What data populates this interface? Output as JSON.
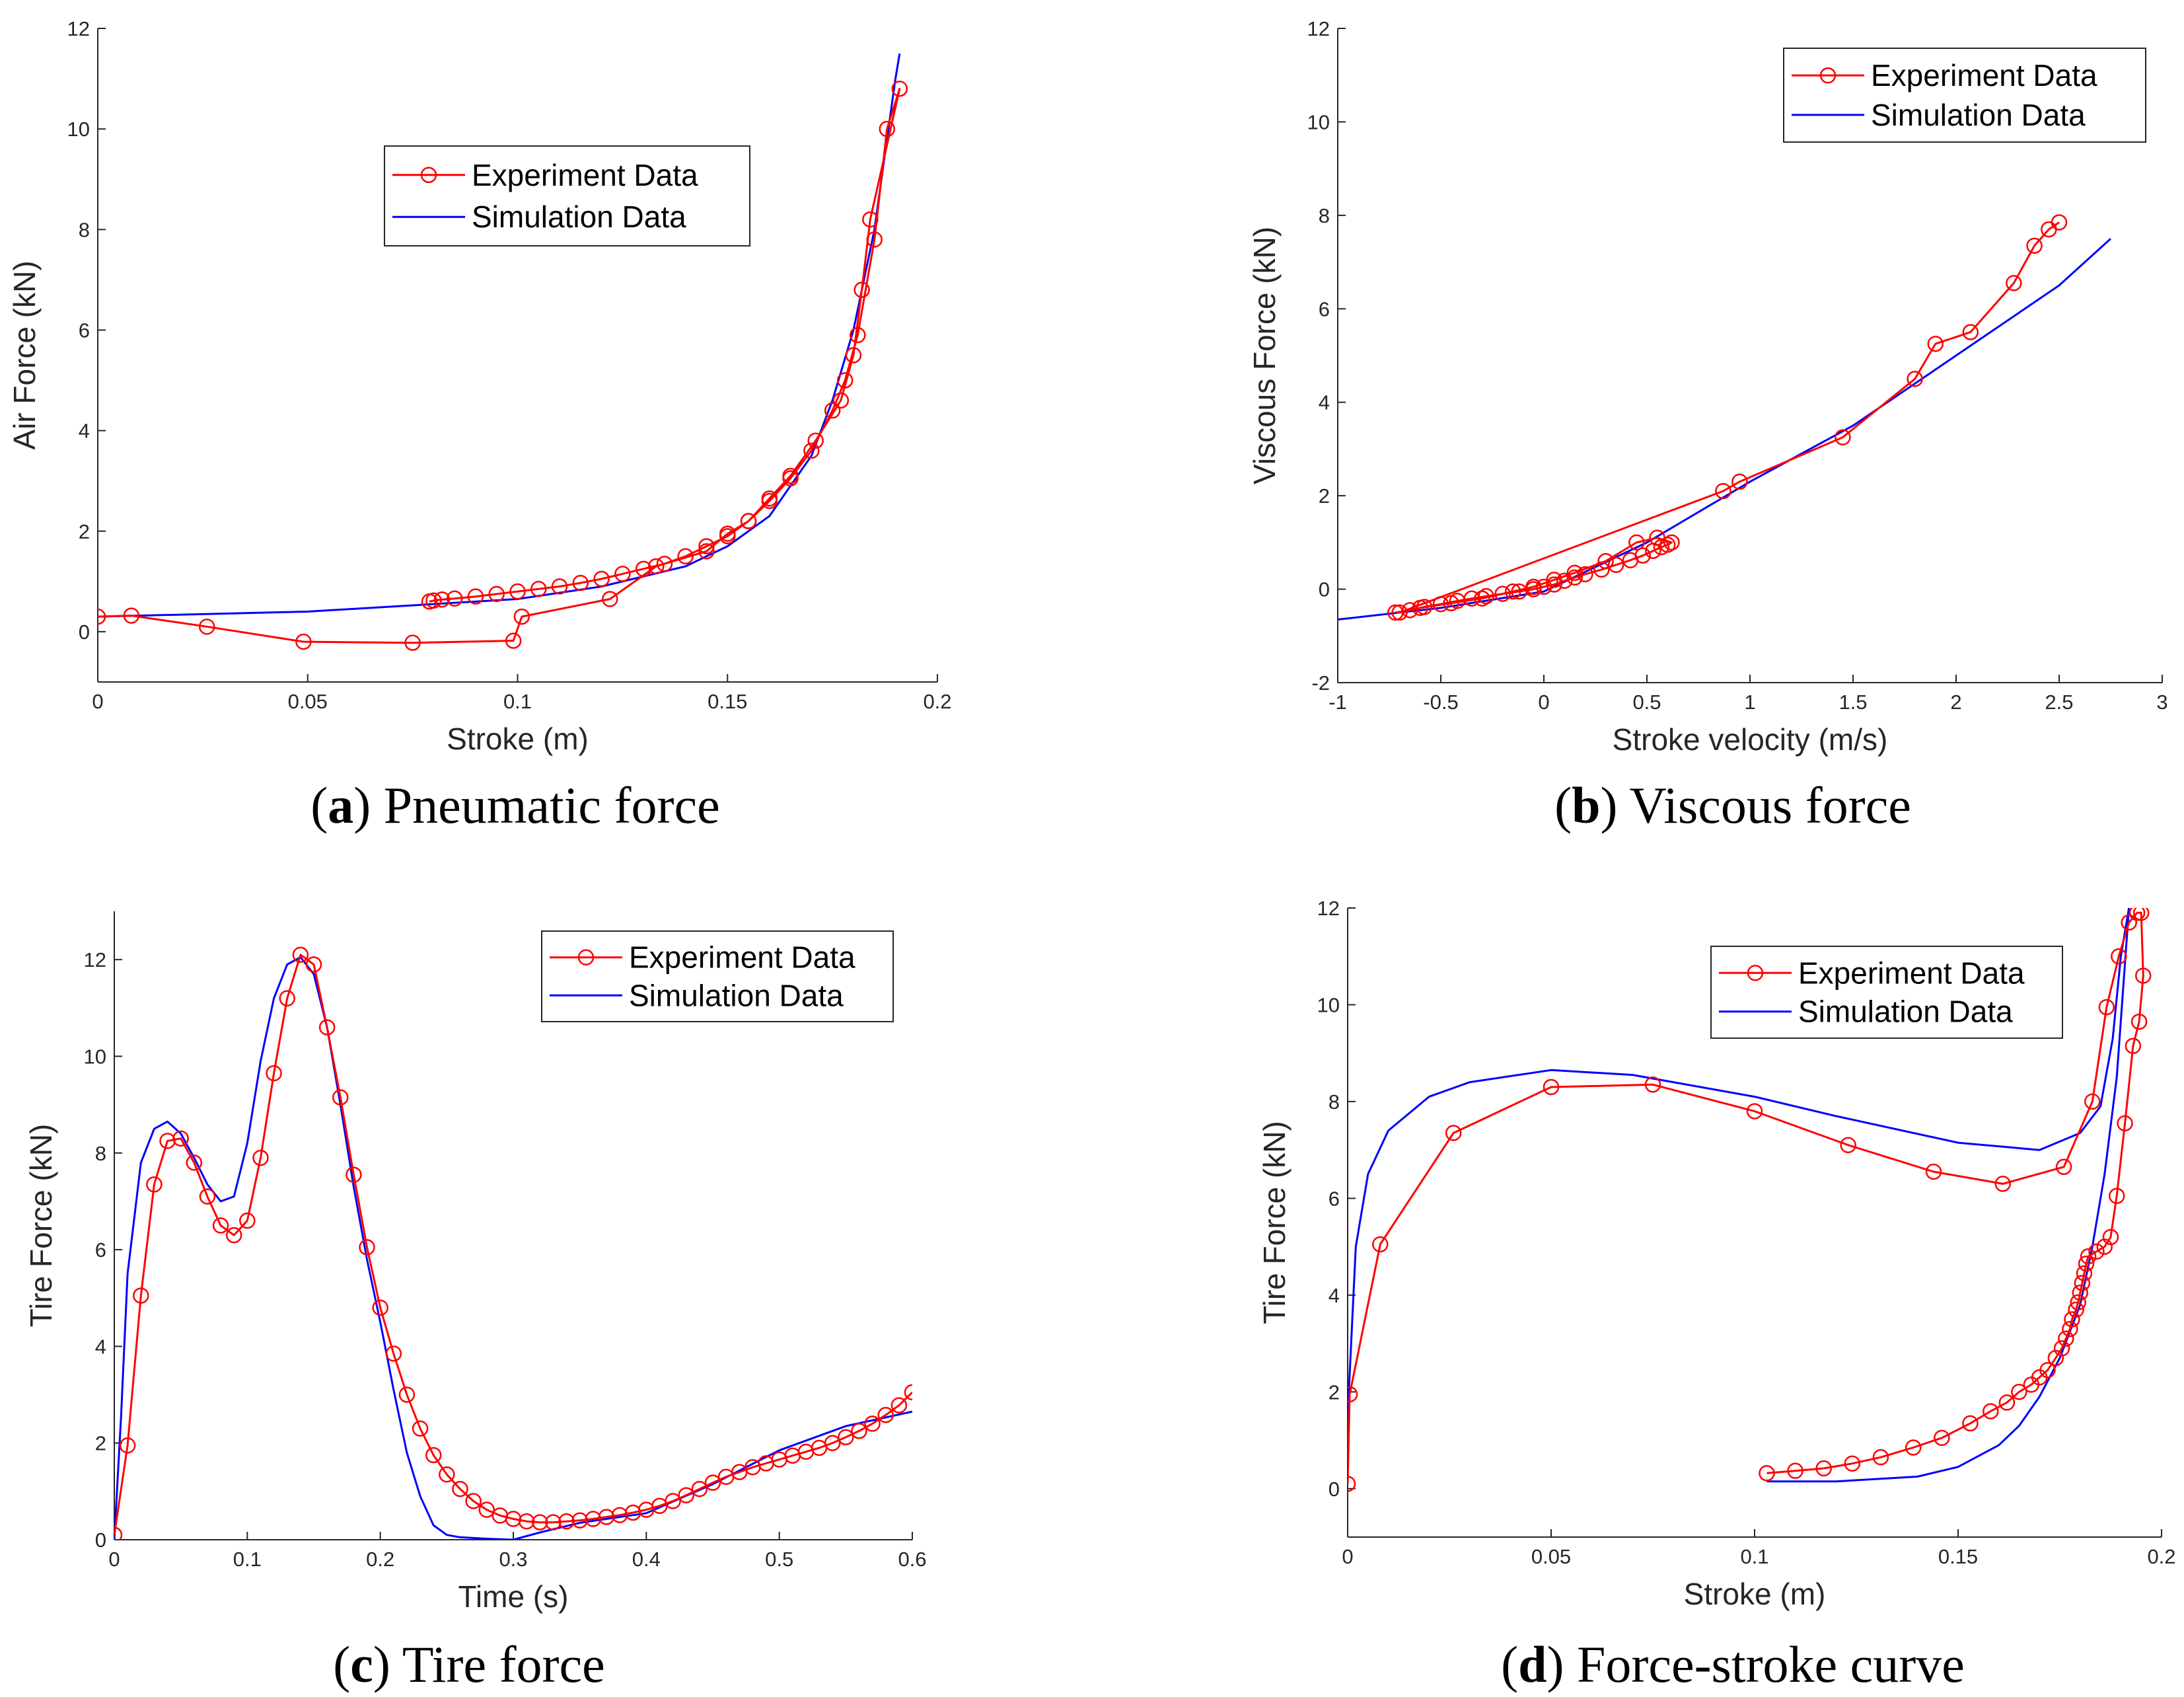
{
  "colors": {
    "experiment": "#ff0000",
    "simulation": "#0000ff",
    "axis": "#262626"
  },
  "legend": {
    "experiment": "Experiment Data",
    "simulation": "Simulation Data"
  },
  "chart_data": [
    {
      "id": "a",
      "type": "line",
      "caption_letter": "a",
      "caption_text": "Pneumatic force",
      "xlabel": "Stroke (m)",
      "ylabel": "Air Force (kN)",
      "xlim": [
        0,
        0.2
      ],
      "ylim": [
        -1,
        12
      ],
      "xticks": [
        0,
        0.05,
        0.1,
        0.15,
        0.2
      ],
      "xticklabels": [
        "0",
        "0.05",
        "0.1",
        "0.15",
        "0.2"
      ],
      "yticks": [
        0,
        2,
        4,
        6,
        8,
        10,
        12
      ],
      "yticklabels": [
        "0",
        "2",
        "4",
        "6",
        "8",
        "10",
        "12"
      ],
      "legend_position": "top-center",
      "series": [
        {
          "name": "Experiment Data",
          "markers": true,
          "x": [
            0,
            0.008,
            0.026,
            0.049,
            0.075,
            0.099,
            0.101,
            0.122,
            0.133,
            0.145,
            0.15,
            0.155,
            0.16,
            0.165,
            0.17,
            0.175,
            0.178,
            0.181,
            0.185,
            0.188,
            0.191,
            0.184,
            0.182,
            0.18,
            0.177,
            0.171,
            0.165,
            0.16,
            0.155,
            0.15,
            0.145,
            0.14,
            0.135,
            0.13,
            0.125,
            0.12,
            0.115,
            0.11,
            0.105,
            0.1,
            0.095,
            0.09,
            0.085,
            0.082,
            0.08,
            0.079
          ],
          "y": [
            0.3,
            0.32,
            0.1,
            -0.2,
            -0.22,
            -0.18,
            0.3,
            0.65,
            1.3,
            1.6,
            1.95,
            2.2,
            2.6,
            3.05,
            3.6,
            4.4,
            5.0,
            5.9,
            7.8,
            10.0,
            10.8,
            8.2,
            6.8,
            5.5,
            4.6,
            3.8,
            3.1,
            2.65,
            2.2,
            1.9,
            1.7,
            1.5,
            1.35,
            1.25,
            1.15,
            1.05,
            0.97,
            0.9,
            0.85,
            0.8,
            0.75,
            0.7,
            0.66,
            0.64,
            0.62,
            0.6
          ]
        },
        {
          "name": "Simulation Data",
          "markers": false,
          "x": [
            0,
            0.05,
            0.1,
            0.12,
            0.14,
            0.15,
            0.16,
            0.17,
            0.175,
            0.18,
            0.185,
            0.188,
            0.19,
            0.191
          ],
          "y": [
            0.3,
            0.4,
            0.65,
            0.9,
            1.3,
            1.7,
            2.3,
            3.5,
            4.6,
            6.0,
            8.0,
            9.8,
            11.0,
            11.5
          ]
        }
      ]
    },
    {
      "id": "b",
      "type": "line",
      "caption_letter": "b",
      "caption_text": "Viscous force",
      "xlabel": "Stroke velocity (m/s)",
      "ylabel": "Viscous Force (kN)",
      "xlim": [
        -1,
        3
      ],
      "ylim": [
        -2,
        12
      ],
      "xticks": [
        -1,
        -0.5,
        0,
        0.5,
        1,
        1.5,
        2,
        2.5,
        3
      ],
      "xticklabels": [
        "-1",
        "-0.5",
        "0",
        "0.5",
        "1",
        "1.5",
        "2",
        "2.5",
        "3"
      ],
      "yticks": [
        -2,
        0,
        2,
        4,
        6,
        8,
        10,
        12
      ],
      "yticklabels": [
        "-2",
        "0",
        "2",
        "4",
        "6",
        "8",
        "10",
        "12"
      ],
      "legend_position": "top-right",
      "series": [
        {
          "name": "Experiment Data",
          "markers": true,
          "x": [
            -0.72,
            -0.65,
            -0.58,
            -0.5,
            -0.42,
            -0.35,
            -0.28,
            -0.2,
            -0.12,
            -0.05,
            0,
            0.05,
            0.1,
            0.15,
            0.2,
            0.28,
            0.35,
            0.42,
            0.48,
            0.53,
            0.57,
            0.6,
            0.62,
            0.55,
            0.45,
            0.3,
            0.15,
            0.05,
            -0.05,
            -0.15,
            -0.3,
            -0.45,
            -0.6,
            -0.7,
            0.87,
            0.95,
            1.45,
            1.8,
            1.9,
            2.07,
            2.28,
            2.38,
            2.45,
            2.5
          ],
          "y": [
            -0.5,
            -0.45,
            -0.38,
            -0.32,
            -0.25,
            -0.2,
            -0.15,
            -0.1,
            -0.05,
            0.0,
            0.05,
            0.1,
            0.18,
            0.25,
            0.32,
            0.42,
            0.52,
            0.62,
            0.72,
            0.82,
            0.9,
            0.95,
            1.0,
            1.1,
            1.0,
            0.6,
            0.35,
            0.2,
            0.05,
            -0.05,
            -0.2,
            -0.3,
            -0.4,
            -0.5,
            2.1,
            2.3,
            3.25,
            4.5,
            5.25,
            5.5,
            6.55,
            7.35,
            7.7,
            7.85
          ]
        },
        {
          "name": "Simulation Data",
          "markers": false,
          "x": [
            -1,
            -0.5,
            0,
            0.5,
            1,
            1.5,
            2,
            2.5,
            2.75
          ],
          "y": [
            -0.65,
            -0.4,
            -0.05,
            1.0,
            2.3,
            3.5,
            5.0,
            6.5,
            7.5
          ]
        }
      ]
    },
    {
      "id": "c",
      "type": "line",
      "caption_letter": "c",
      "caption_text": "Tire force",
      "xlabel": "Time (s)",
      "ylabel": "Tire Force (kN)",
      "xlim": [
        0,
        0.6
      ],
      "ylim": [
        0,
        13
      ],
      "xticks": [
        0,
        0.1,
        0.2,
        0.3,
        0.4,
        0.5,
        0.6
      ],
      "xticklabels": [
        "0",
        "0.1",
        "0.2",
        "0.3",
        "0.4",
        "0.5",
        "0.6"
      ],
      "yticks": [
        0,
        2,
        4,
        6,
        8,
        10,
        12
      ],
      "yticklabels": [
        "0",
        "2",
        "4",
        "6",
        "8",
        "10",
        "12"
      ],
      "legend_position": "top-right",
      "series": [
        {
          "name": "Experiment Data",
          "markers": true,
          "x": [
            0,
            0.01,
            0.02,
            0.03,
            0.04,
            0.05,
            0.06,
            0.07,
            0.08,
            0.09,
            0.1,
            0.11,
            0.12,
            0.13,
            0.14,
            0.15,
            0.16,
            0.17,
            0.18,
            0.19,
            0.2,
            0.21,
            0.22,
            0.23,
            0.24,
            0.25,
            0.26,
            0.27,
            0.28,
            0.29,
            0.3,
            0.31,
            0.32,
            0.33,
            0.34,
            0.35,
            0.36,
            0.37,
            0.38,
            0.39,
            0.4,
            0.41,
            0.42,
            0.43,
            0.44,
            0.45,
            0.46,
            0.47,
            0.48,
            0.49,
            0.5,
            0.51,
            0.52,
            0.53,
            0.54,
            0.55,
            0.56,
            0.57,
            0.58,
            0.59,
            0.6
          ],
          "y": [
            0.1,
            1.95,
            5.05,
            7.35,
            8.25,
            8.3,
            7.8,
            7.1,
            6.5,
            6.3,
            6.6,
            7.9,
            9.65,
            11.2,
            12.1,
            11.9,
            10.6,
            9.15,
            7.55,
            6.05,
            4.8,
            3.85,
            3.0,
            2.3,
            1.75,
            1.35,
            1.05,
            0.8,
            0.62,
            0.5,
            0.43,
            0.38,
            0.36,
            0.36,
            0.38,
            0.4,
            0.43,
            0.47,
            0.51,
            0.56,
            0.62,
            0.7,
            0.8,
            0.92,
            1.05,
            1.18,
            1.3,
            1.4,
            1.5,
            1.58,
            1.66,
            1.74,
            1.82,
            1.9,
            2.0,
            2.12,
            2.25,
            2.4,
            2.58,
            2.78,
            3.05
          ]
        },
        {
          "name": "Simulation Data",
          "markers": false,
          "x": [
            0,
            0.005,
            0.01,
            0.02,
            0.03,
            0.04,
            0.05,
            0.06,
            0.07,
            0.08,
            0.09,
            0.1,
            0.11,
            0.12,
            0.13,
            0.14,
            0.15,
            0.16,
            0.17,
            0.18,
            0.19,
            0.2,
            0.21,
            0.22,
            0.23,
            0.24,
            0.25,
            0.26,
            0.28,
            0.3,
            0.32,
            0.35,
            0.4,
            0.45,
            0.5,
            0.55,
            0.6
          ],
          "y": [
            0,
            2.5,
            5.5,
            7.8,
            8.5,
            8.65,
            8.4,
            7.9,
            7.35,
            7.0,
            7.1,
            8.2,
            9.9,
            11.2,
            11.9,
            12.05,
            11.7,
            10.6,
            9.0,
            7.3,
            5.8,
            4.5,
            3.1,
            1.8,
            0.9,
            0.3,
            0.1,
            0.05,
            0.02,
            0.0,
            0.15,
            0.35,
            0.55,
            1.15,
            1.85,
            2.35,
            2.65
          ]
        }
      ]
    },
    {
      "id": "d",
      "type": "line",
      "caption_letter": "d",
      "caption_text": "Force-stroke curve",
      "xlabel": "Stroke (m)",
      "ylabel": "Tire Force (kN)",
      "xlim": [
        0,
        0.2
      ],
      "ylim": [
        -1,
        12
      ],
      "xticks": [
        0,
        0.05,
        0.1,
        0.15,
        0.2
      ],
      "xticklabels": [
        "0",
        "0.05",
        "0.1",
        "0.15",
        "0.2"
      ],
      "yticks": [
        0,
        2,
        4,
        6,
        8,
        10,
        12
      ],
      "yticklabels": [
        "0",
        "2",
        "4",
        "6",
        "8",
        "10",
        "12"
      ],
      "legend_position": "top-right",
      "series": [
        {
          "name": "Experiment Data",
          "markers": true,
          "x": [
            0,
            0.0005,
            0.008,
            0.026,
            0.05,
            0.075,
            0.1,
            0.123,
            0.144,
            0.161,
            0.176,
            0.183,
            0.1865,
            0.1895,
            0.192,
            0.194,
            0.195,
            0.1955,
            0.1945,
            0.193,
            0.191,
            0.189,
            0.1875,
            0.186,
            0.184,
            0.182,
            0.1815,
            0.181,
            0.1805,
            0.18,
            0.1795,
            0.179,
            0.178,
            0.1775,
            0.1765,
            0.1755,
            0.174,
            0.172,
            0.17,
            0.168,
            0.165,
            0.162,
            0.158,
            0.153,
            0.146,
            0.139,
            0.131,
            0.124,
            0.117,
            0.11,
            0.103
          ],
          "y": [
            0.1,
            1.95,
            5.05,
            7.35,
            8.3,
            8.35,
            7.8,
            7.1,
            6.55,
            6.3,
            6.65,
            8.0,
            9.95,
            11.0,
            11.7,
            11.9,
            11.9,
            10.6,
            9.65,
            9.15,
            7.55,
            6.05,
            5.2,
            5.0,
            4.9,
            4.8,
            4.65,
            4.45,
            4.25,
            4.05,
            3.85,
            3.7,
            3.5,
            3.3,
            3.1,
            2.9,
            2.7,
            2.45,
            2.3,
            2.15,
            2.0,
            1.78,
            1.6,
            1.35,
            1.05,
            0.85,
            0.65,
            0.52,
            0.42,
            0.37,
            0.32
          ]
        },
        {
          "name": "Simulation Data",
          "markers": false,
          "x": [
            0,
            0.002,
            0.005,
            0.01,
            0.02,
            0.03,
            0.05,
            0.07,
            0.1,
            0.12,
            0.15,
            0.17,
            0.18,
            0.185,
            0.188,
            0.19,
            0.192,
            0.189,
            0.186,
            0.183,
            0.18,
            0.175,
            0.17,
            0.165,
            0.16,
            0.15,
            0.14,
            0.12,
            0.103
          ],
          "y": [
            1.5,
            5.0,
            6.5,
            7.4,
            8.1,
            8.4,
            8.65,
            8.55,
            8.1,
            7.7,
            7.15,
            7.0,
            7.35,
            7.9,
            9.3,
            11.0,
            12.0,
            8.5,
            6.5,
            5.0,
            3.8,
            2.7,
            1.9,
            1.3,
            0.9,
            0.45,
            0.25,
            0.15,
            0.15
          ]
        }
      ]
    }
  ]
}
